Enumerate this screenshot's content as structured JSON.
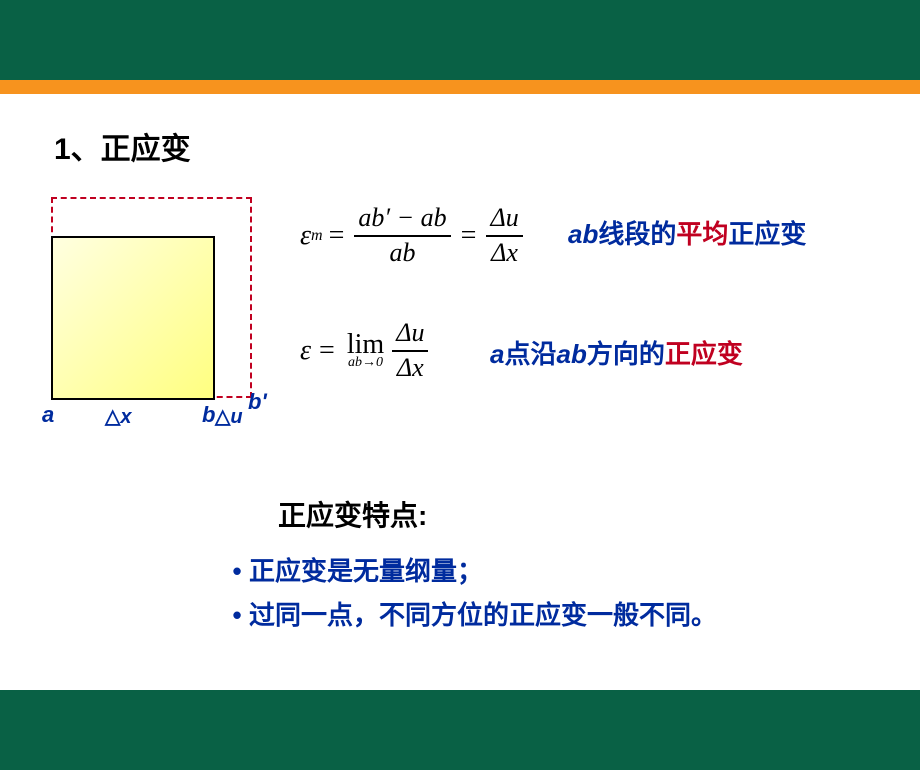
{
  "heading": "1、正应变",
  "diagram": {
    "a": "a",
    "b": "b",
    "bp": "b'",
    "dx_delta": "△",
    "dx_var": "x",
    "du_delta": "△",
    "du_var": "u"
  },
  "eq1": {
    "lhs": "ε",
    "sub": "m",
    "eq": "=",
    "num1": "ab′ − ab",
    "den1": "ab",
    "eq2": "=",
    "num2": "Δu",
    "den2": "Δx"
  },
  "eq2": {
    "lhs": "ε",
    "eq": "=",
    "lim_op": "lim",
    "lim_cond": "ab→0",
    "num": "Δu",
    "den": "Δx"
  },
  "note1": {
    "ab": "ab",
    "t1a": "线段的",
    "t2": "平均",
    "t1b": "正应变"
  },
  "note2": {
    "ab1": "a",
    "t1a": "点沿",
    "ab2": "ab",
    "t1b": "方向的",
    "t2": "正应变"
  },
  "sec_title": "正应变特点:",
  "bullets": {
    "b1": "正应变是无量纲量；",
    "b2": "过同一点，不同方位的正应变一般不同。"
  }
}
